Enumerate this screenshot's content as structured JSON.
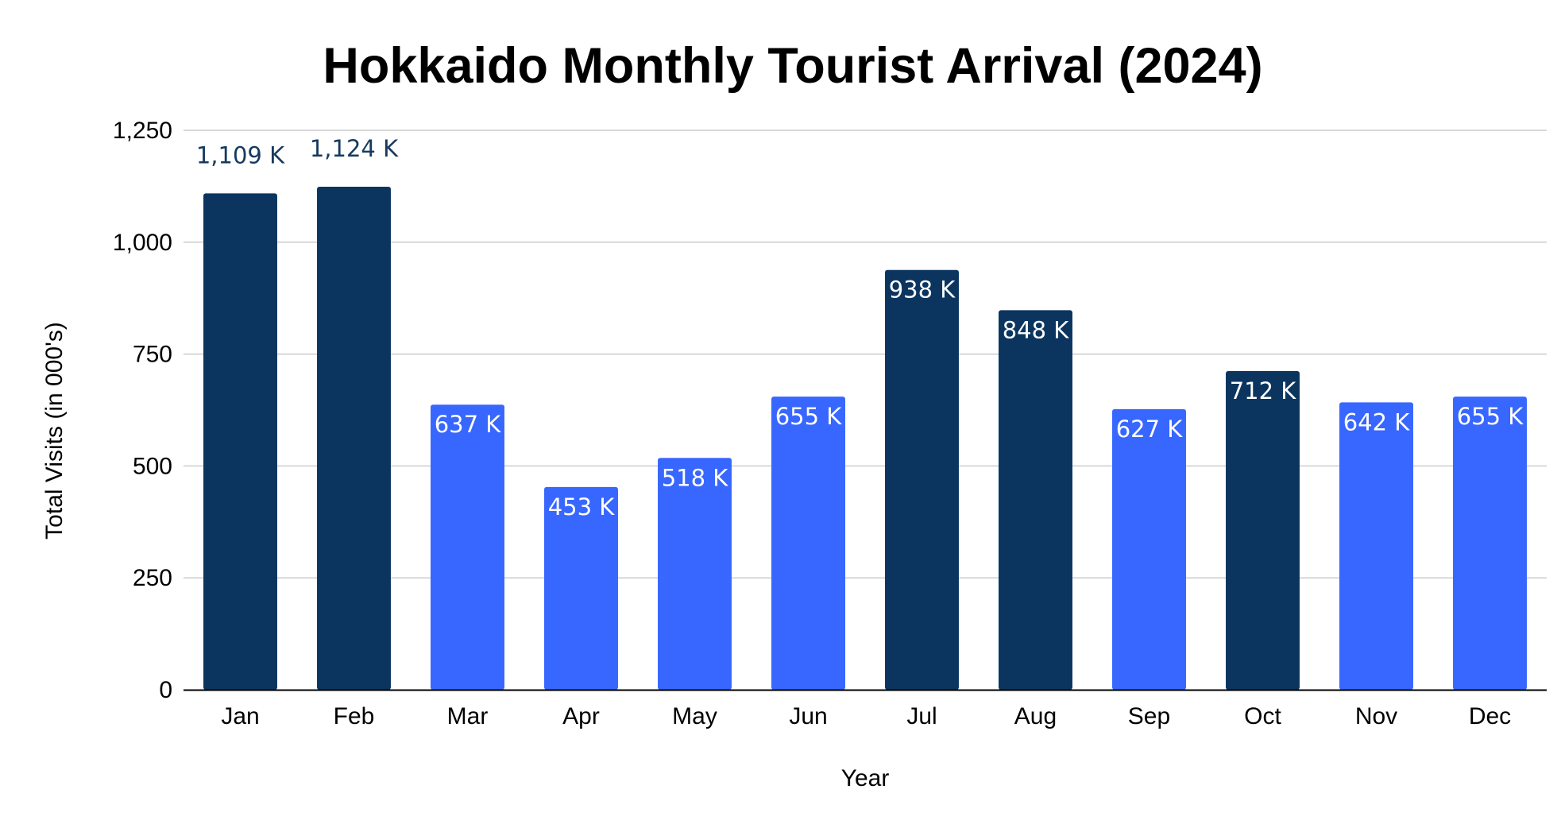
{
  "chart_data": {
    "type": "bar",
    "title": "Hokkaido Monthly Tourist Arrival (2024)",
    "xlabel": "Year",
    "ylabel": "Total Visits (in 000's)",
    "categories": [
      "Jan",
      "Feb",
      "Mar",
      "Apr",
      "May",
      "Jun",
      "Jul",
      "Aug",
      "Sep",
      "Oct",
      "Nov",
      "Dec"
    ],
    "values": [
      1109,
      1124,
      637,
      453,
      518,
      655,
      938,
      848,
      627,
      712,
      642,
      655
    ],
    "data_labels": [
      "1,109 K",
      "1,124 K",
      "637 K",
      "453 K",
      "518 K",
      "655 K",
      "938 K",
      "848 K",
      "627 K",
      "712 K",
      "642 K",
      "655 K"
    ],
    "highlighted": [
      true,
      true,
      false,
      false,
      false,
      false,
      true,
      true,
      false,
      true,
      false,
      false
    ],
    "ylim": [
      0,
      1250
    ],
    "yticks": [
      0,
      250,
      500,
      750,
      1000,
      1250
    ],
    "ytick_labels": [
      "0",
      "250",
      "500",
      "750",
      "1,000",
      "1,250"
    ],
    "grid": true,
    "legend": "none",
    "colors": {
      "highlight_bar": "#0b355f",
      "regular_bar": "#3867ff",
      "label_inside": "#ffffff",
      "label_outside": "#163a5f",
      "gridline": "#cccccc",
      "axis_line": "#000000"
    }
  }
}
